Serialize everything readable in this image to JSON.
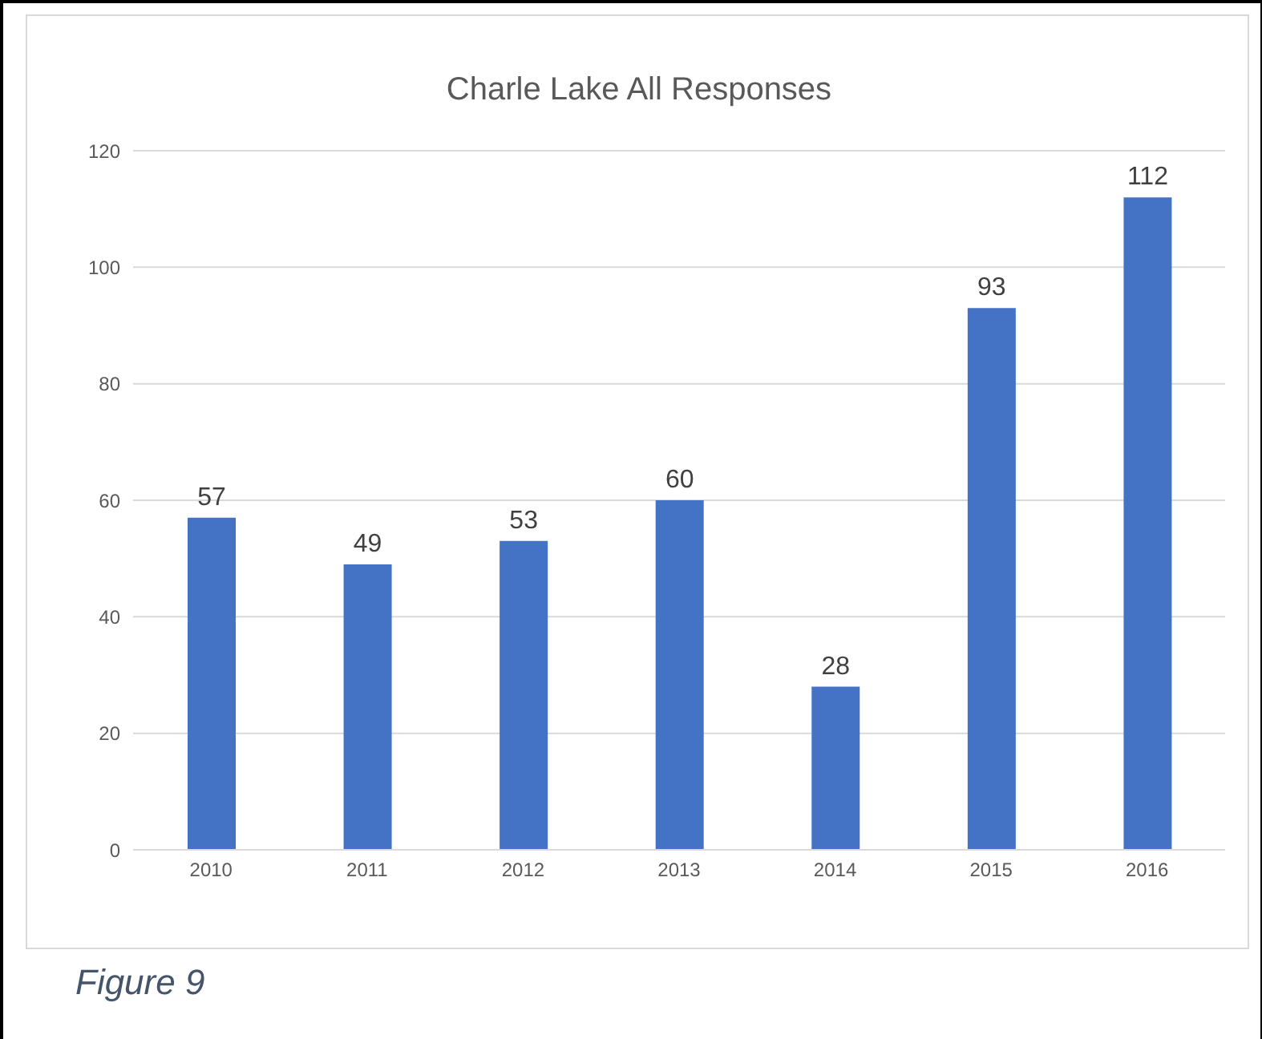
{
  "chart_data": {
    "type": "bar",
    "title": "Charle Lake All Responses",
    "categories": [
      "2010",
      "2011",
      "2012",
      "2013",
      "2014",
      "2015",
      "2016"
    ],
    "values": [
      57,
      49,
      53,
      60,
      28,
      93,
      112
    ],
    "color": "#4472c4",
    "ylim": [
      0,
      120
    ],
    "yticks": [
      0,
      20,
      40,
      60,
      80,
      100,
      120
    ],
    "grid": "y",
    "data_labels": true,
    "annotations": [
      "Figure 9"
    ]
  }
}
